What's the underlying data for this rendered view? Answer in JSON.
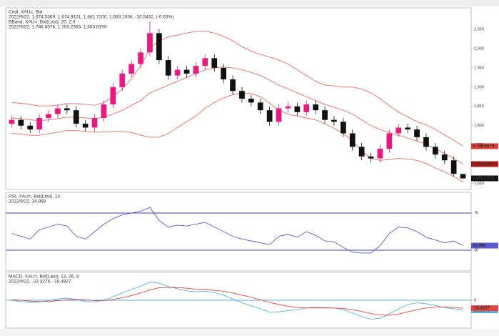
{
  "chart_data": [
    {
      "type": "candlestick",
      "title": "Cndl, XAU=, Bid",
      "subtitle": "2022/9/22, 1,674.5369, 1,674.9101, 1,661.7200, 1,663.1936, -10.5432, (-0.63%)",
      "overlay_title": "BBand, XAU=, Bid(Last), 20, 2.0",
      "overlay_subtitle": "2022/9/22, 1,746.6576, 1,700.2363, 1,653.8190",
      "up_color": "#e8197f",
      "down_color": "#111111",
      "open": [
        1805,
        1815,
        1800,
        1790,
        1820,
        1830,
        1845,
        1840,
        1805,
        1795,
        1820,
        1855,
        1900,
        1935,
        1960,
        1990,
        2040,
        1970,
        1930,
        1945,
        1935,
        1955,
        1975,
        1950,
        1920,
        1890,
        1870,
        1860,
        1840,
        1810,
        1845,
        1850,
        1835,
        1855,
        1840,
        1815,
        1810,
        1780,
        1745,
        1720,
        1715,
        1740,
        1780,
        1795,
        1790,
        1770,
        1745,
        1725,
        1710,
        1674.5369
      ],
      "high": [
        1825,
        1825,
        1810,
        1830,
        1840,
        1855,
        1855,
        1850,
        1815,
        1830,
        1865,
        1910,
        1945,
        1970,
        2000,
        2070,
        2050,
        1980,
        1955,
        1955,
        1965,
        1985,
        1985,
        1960,
        1930,
        1900,
        1880,
        1870,
        1850,
        1855,
        1860,
        1860,
        1865,
        1865,
        1850,
        1825,
        1820,
        1790,
        1755,
        1730,
        1750,
        1790,
        1805,
        1805,
        1800,
        1780,
        1755,
        1735,
        1720,
        1674.9101
      ],
      "low": [
        1795,
        1790,
        1780,
        1780,
        1810,
        1820,
        1830,
        1795,
        1785,
        1785,
        1810,
        1845,
        1890,
        1925,
        1950,
        1980,
        1960,
        1920,
        1920,
        1925,
        1925,
        1945,
        1940,
        1910,
        1880,
        1860,
        1850,
        1830,
        1800,
        1800,
        1835,
        1825,
        1825,
        1830,
        1805,
        1800,
        1770,
        1735,
        1710,
        1705,
        1705,
        1730,
        1770,
        1780,
        1760,
        1735,
        1715,
        1700,
        1668,
        1661.72
      ],
      "close": [
        1815,
        1800,
        1790,
        1820,
        1830,
        1845,
        1840,
        1805,
        1795,
        1820,
        1855,
        1900,
        1935,
        1960,
        1990,
        2040,
        1970,
        1930,
        1945,
        1935,
        1955,
        1975,
        1950,
        1920,
        1890,
        1870,
        1860,
        1840,
        1810,
        1845,
        1850,
        1835,
        1855,
        1840,
        1815,
        1810,
        1780,
        1745,
        1720,
        1715,
        1740,
        1780,
        1795,
        1790,
        1770,
        1745,
        1725,
        1710,
        1675,
        1663.1936
      ],
      "close_label": "1,663.1936",
      "series": [
        {
          "color": "#f06a5a",
          "last_label": "1,746.6576",
          "values": [
            1860,
            1858,
            1855,
            1851,
            1851,
            1853,
            1857,
            1857,
            1855,
            1853,
            1860,
            1875,
            1895,
            1922,
            1955,
            2000,
            2020,
            2030,
            2035,
            2040,
            2045,
            2045,
            2040,
            2032,
            2020,
            2005,
            1993,
            1985,
            1978,
            1970,
            1960,
            1945,
            1930,
            1915,
            1905,
            1903,
            1900,
            1900,
            1895,
            1885,
            1870,
            1852,
            1835,
            1823,
            1810,
            1802,
            1790,
            1776,
            1762,
            1746.6576
          ]
        },
        {
          "color": "#f06a5a",
          "last_label": "1,700.2363",
          "values": [
            1820,
            1818,
            1815,
            1813,
            1815,
            1818,
            1822,
            1822,
            1820,
            1818,
            1822,
            1830,
            1840,
            1852,
            1865,
            1885,
            1895,
            1905,
            1915,
            1925,
            1935,
            1945,
            1950,
            1952,
            1950,
            1945,
            1938,
            1930,
            1918,
            1905,
            1895,
            1885,
            1875,
            1865,
            1855,
            1848,
            1840,
            1830,
            1815,
            1800,
            1790,
            1782,
            1775,
            1768,
            1760,
            1752,
            1740,
            1728,
            1715,
            1700.2363
          ]
        },
        {
          "color": "#f06a5a",
          "values": [
            1780,
            1778,
            1775,
            1775,
            1779,
            1783,
            1787,
            1787,
            1785,
            1783,
            1784,
            1785,
            1785,
            1782,
            1775,
            1770,
            1770,
            1780,
            1795,
            1810,
            1825,
            1845,
            1860,
            1872,
            1880,
            1885,
            1883,
            1875,
            1858,
            1840,
            1830,
            1825,
            1820,
            1815,
            1805,
            1793,
            1780,
            1760,
            1735,
            1715,
            1710,
            1712,
            1715,
            1713,
            1710,
            1702,
            1690,
            1680,
            1668,
            1653.819
          ]
        }
      ],
      "ylim": [
        1640,
        2100
      ],
      "yticks": [
        {
          "value": 1650,
          "label": "1,650"
        },
        {
          "value": 1700,
          "label": "1,700"
        },
        {
          "value": 1750,
          "label": "1,750"
        },
        {
          "value": 1800,
          "label": "1,800"
        },
        {
          "value": 1850,
          "label": "1,850"
        },
        {
          "value": 1900,
          "label": "1,900"
        },
        {
          "value": 1950,
          "label": "1,950"
        },
        {
          "value": 2000,
          "label": "2,000"
        },
        {
          "value": 2050,
          "label": "2,050"
        }
      ]
    },
    {
      "type": "line",
      "title": "RSI, XAU=, Bid(Last), 14",
      "subtitle": "2022/9/22, 34.968",
      "ref_color": "#3b3bd0",
      "series": [
        {
          "color": "#5b5bd6",
          "values": [
            48,
            45,
            42,
            52,
            55,
            58,
            56,
            45,
            42,
            50,
            58,
            64,
            68,
            70,
            72,
            76,
            62,
            55,
            57,
            56,
            58,
            60,
            55,
            50,
            45,
            42,
            40,
            38,
            36,
            45,
            47,
            44,
            50,
            46,
            40,
            39,
            33,
            28,
            27,
            27,
            35,
            48,
            55,
            54,
            50,
            44,
            41,
            38,
            40,
            34.968
          ]
        }
      ],
      "ylim": [
        10,
        90
      ],
      "yticks": [
        30,
        70
      ]
    },
    {
      "type": "line",
      "title": "MACD, XAU=, Bid(Last), 12, 26, 9",
      "subtitle": "2022/9/22, -23.3276, -18.4927",
      "ref_color": "#4fb3e8",
      "series": [
        {
          "color": "#4fb3e8",
          "values": [
            0,
            -3,
            -6,
            -4,
            -1,
            3,
            5,
            2,
            -3,
            -4,
            0,
            8,
            17,
            25,
            33,
            42,
            40,
            32,
            27,
            22,
            20,
            21,
            18,
            12,
            3,
            -6,
            -13,
            -20,
            -28,
            -27,
            -24,
            -22,
            -18,
            -16,
            -17,
            -18,
            -22,
            -30,
            -38,
            -44,
            -42,
            -32,
            -20,
            -10,
            -6,
            -8,
            -12,
            -17,
            -20,
            -23.3276
          ]
        },
        {
          "color": "#e8453c",
          "values": [
            1,
            0,
            -2,
            -3,
            -3,
            -1,
            1,
            2,
            1,
            -1,
            -1,
            2,
            6,
            11,
            17,
            24,
            29,
            30,
            30,
            28,
            26,
            25,
            23,
            21,
            17,
            12,
            7,
            1,
            -5,
            -10,
            -14,
            -17,
            -18,
            -18,
            -18,
            -18,
            -19,
            -22,
            -26,
            -31,
            -34,
            -35,
            -32,
            -27,
            -22,
            -18,
            -16,
            -16,
            -17,
            -18.4927
          ]
        }
      ],
      "ylim": [
        -60,
        60
      ],
      "yticks": [
        0
      ]
    }
  ]
}
